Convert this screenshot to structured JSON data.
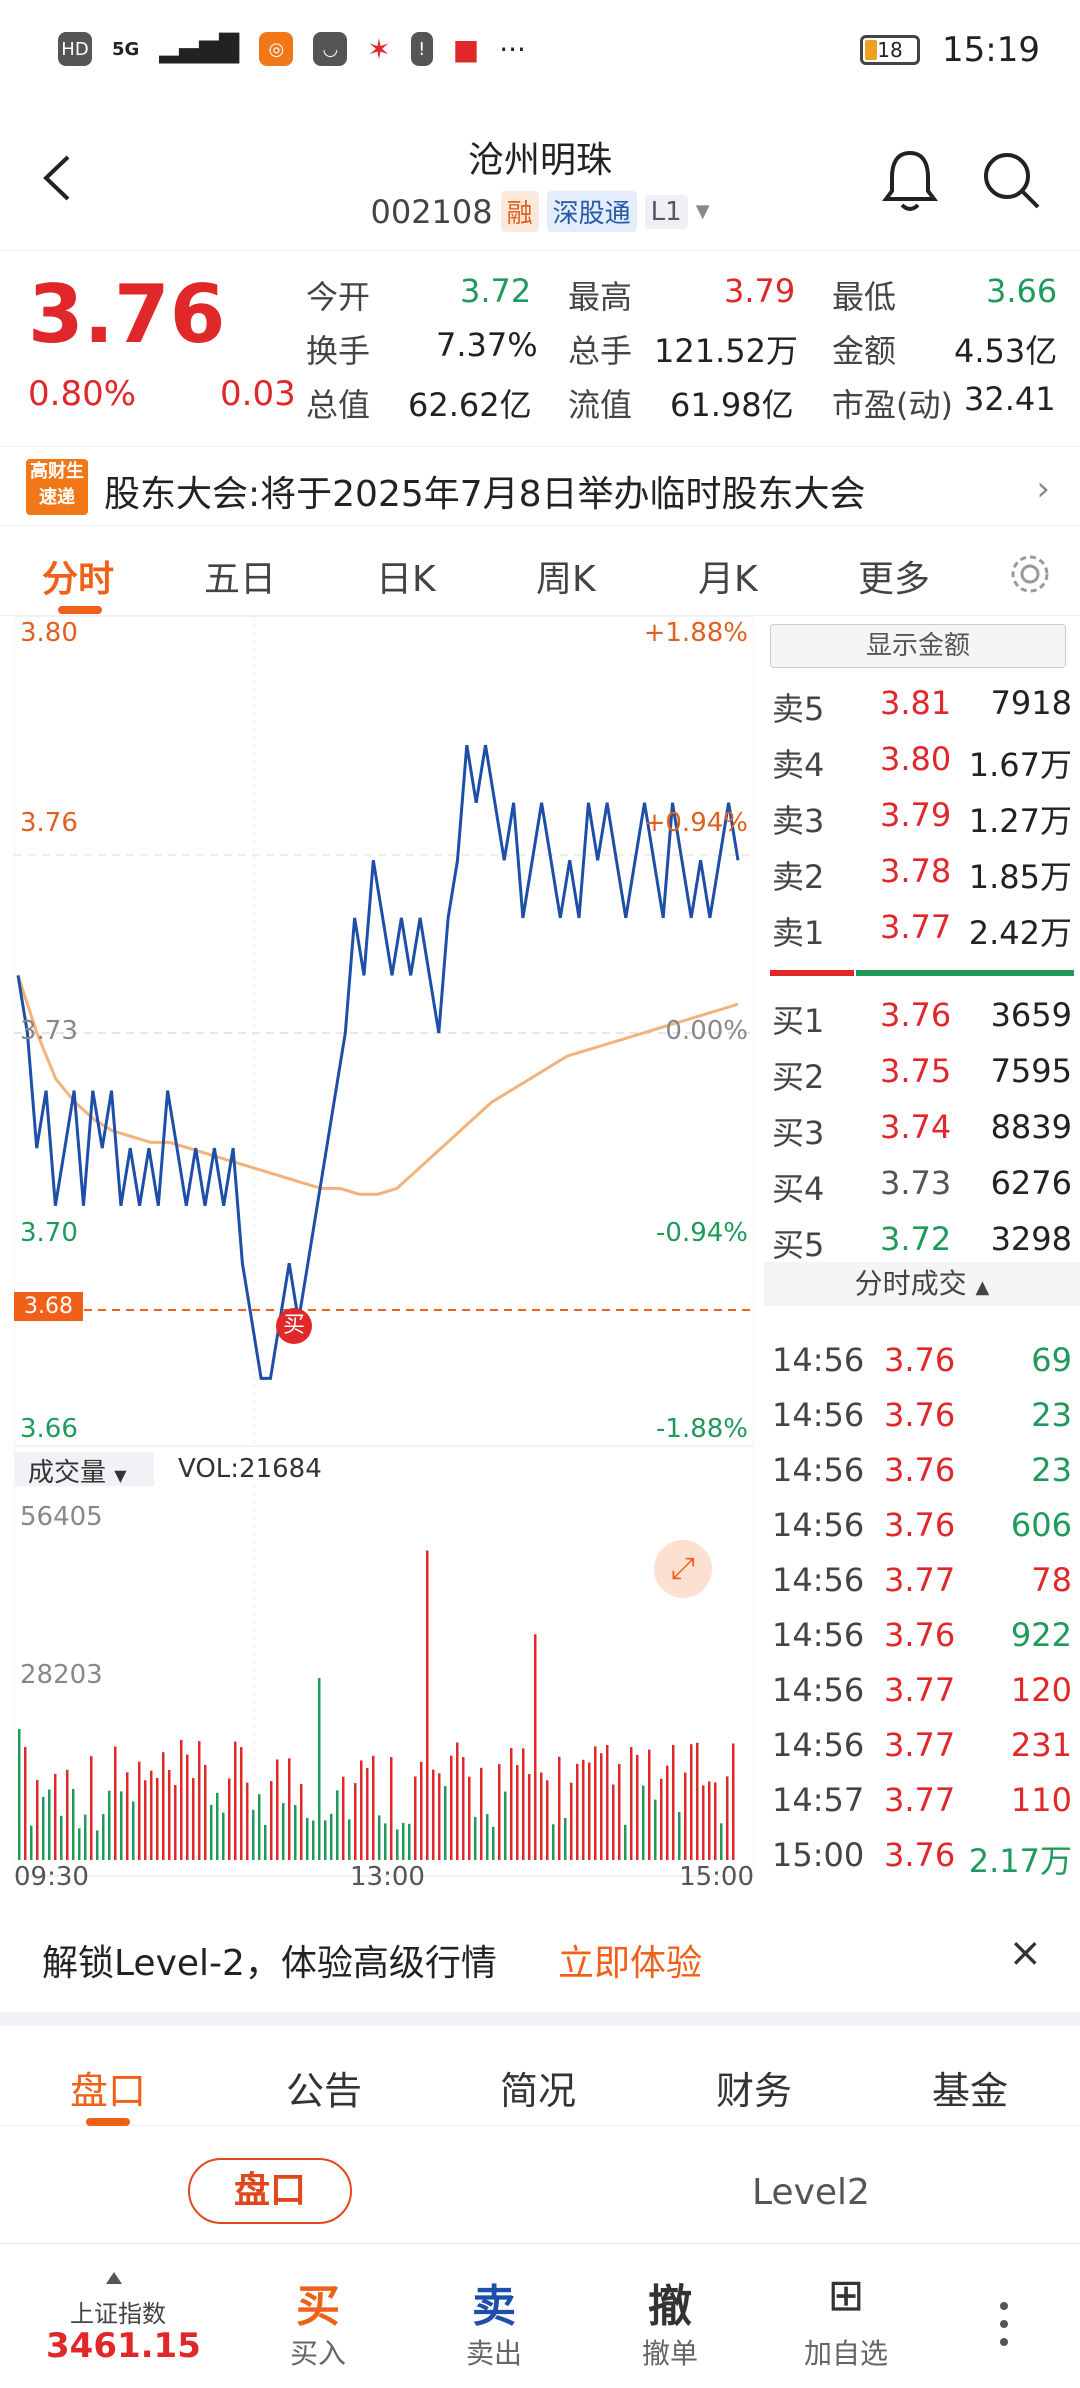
{
  "status_bar": {
    "network_labels": [
      "HD",
      "5G"
    ],
    "time": "15:19",
    "battery": "18"
  },
  "header": {
    "name": "沧州明珠",
    "code": "002108",
    "tags": [
      "融",
      "深股通",
      "L1"
    ]
  },
  "quote": {
    "price": "3.76",
    "pct_change": "0.80%",
    "change": "0.03",
    "fields": [
      {
        "label": "今开",
        "value": "3.72",
        "color": "green"
      },
      {
        "label": "最高",
        "value": "3.79",
        "color": "red"
      },
      {
        "label": "最低",
        "value": "3.66",
        "color": "green"
      },
      {
        "label": "换手",
        "value": "7.37%",
        "color": "plain"
      },
      {
        "label": "总手",
        "value": "121.52万",
        "color": "plain"
      },
      {
        "label": "金额",
        "value": "4.53亿",
        "color": "plain"
      },
      {
        "label": "总值",
        "value": "62.62亿",
        "color": "plain"
      },
      {
        "label": "流值",
        "value": "61.98亿",
        "color": "plain"
      },
      {
        "label": "市盈(动)",
        "value": "32.41",
        "color": "plain"
      }
    ]
  },
  "news": {
    "logo_text": "高财生 速递",
    "text": "股东大会:将于2025年7月8日举办临时股东大会"
  },
  "period_tabs": [
    "分时",
    "五日",
    "日K",
    "周K",
    "月K",
    "更多"
  ],
  "chart_data": {
    "type": "line",
    "price_axis": {
      "ticks": [
        "3.80",
        "3.76",
        "3.73",
        "3.70",
        "3.66"
      ],
      "min": 3.66,
      "max": 3.8
    },
    "pct_axis": [
      "+1.88%",
      "+0.94%",
      "0.00%",
      "-0.94%",
      "-1.88%"
    ],
    "prev_close": 3.73,
    "marker_price": "3.68",
    "buy_marker": "买",
    "price_series": [
      3.74,
      3.73,
      3.71,
      3.72,
      3.7,
      3.71,
      3.72,
      3.7,
      3.72,
      3.71,
      3.72,
      3.7,
      3.71,
      3.7,
      3.71,
      3.7,
      3.72,
      3.71,
      3.7,
      3.71,
      3.7,
      3.71,
      3.7,
      3.71,
      3.69,
      3.68,
      3.67,
      3.67,
      3.68,
      3.69,
      3.68,
      3.69,
      3.7,
      3.71,
      3.72,
      3.73,
      3.75,
      3.74,
      3.76,
      3.75,
      3.74,
      3.75,
      3.74,
      3.75,
      3.74,
      3.73,
      3.75,
      3.76,
      3.78,
      3.77,
      3.78,
      3.77,
      3.76,
      3.77,
      3.75,
      3.76,
      3.77,
      3.76,
      3.75,
      3.76,
      3.75,
      3.77,
      3.76,
      3.77,
      3.76,
      3.75,
      3.76,
      3.77,
      3.76,
      3.75,
      3.77,
      3.76,
      3.75,
      3.76,
      3.75,
      3.76,
      3.77,
      3.76
    ],
    "avg_series": [
      3.74,
      3.73,
      3.722,
      3.718,
      3.715,
      3.713,
      3.712,
      3.711,
      3.711,
      3.71,
      3.709,
      3.708,
      3.707,
      3.706,
      3.705,
      3.704,
      3.703,
      3.703,
      3.702,
      3.702,
      3.703,
      3.706,
      3.709,
      3.712,
      3.715,
      3.718,
      3.72,
      3.722,
      3.724,
      3.726,
      3.727,
      3.728,
      3.729,
      3.73,
      3.731,
      3.732,
      3.733,
      3.734,
      3.735
    ],
    "volume": {
      "label": "成交量",
      "vol_text": "VOL:21684",
      "ticks": [
        "56405",
        "28203"
      ],
      "max": 56405
    },
    "time_labels": [
      "09:30",
      "13:00",
      "15:00"
    ]
  },
  "order_book": {
    "toggle_label": "显示金额",
    "asks": [
      {
        "label": "卖5",
        "price": "3.81",
        "vol": "7918",
        "color": "red"
      },
      {
        "label": "卖4",
        "price": "3.80",
        "vol": "1.67万",
        "color": "red"
      },
      {
        "label": "卖3",
        "price": "3.79",
        "vol": "1.27万",
        "color": "red"
      },
      {
        "label": "卖2",
        "price": "3.78",
        "vol": "1.85万",
        "color": "red"
      },
      {
        "label": "卖1",
        "price": "3.77",
        "vol": "2.42万",
        "color": "red"
      }
    ],
    "bids": [
      {
        "label": "买1",
        "price": "3.76",
        "vol": "3659",
        "color": "red"
      },
      {
        "label": "买2",
        "price": "3.75",
        "vol": "7595",
        "color": "red"
      },
      {
        "label": "买3",
        "price": "3.74",
        "vol": "8839",
        "color": "red"
      },
      {
        "label": "买4",
        "price": "3.73",
        "vol": "6276",
        "color": "gray"
      },
      {
        "label": "买5",
        "price": "3.72",
        "vol": "3298",
        "color": "green"
      }
    ]
  },
  "ticks": {
    "header": "分时成交",
    "rows": [
      {
        "time": "14:56",
        "price": "3.76",
        "vol": "69",
        "vc": "green"
      },
      {
        "time": "14:56",
        "price": "3.76",
        "vol": "23",
        "vc": "green"
      },
      {
        "time": "14:56",
        "price": "3.76",
        "vol": "23",
        "vc": "green"
      },
      {
        "time": "14:56",
        "price": "3.76",
        "vol": "606",
        "vc": "green"
      },
      {
        "time": "14:56",
        "price": "3.77",
        "vol": "78",
        "vc": "red"
      },
      {
        "time": "14:56",
        "price": "3.76",
        "vol": "922",
        "vc": "green"
      },
      {
        "time": "14:56",
        "price": "3.77",
        "vol": "120",
        "vc": "red"
      },
      {
        "time": "14:56",
        "price": "3.77",
        "vol": "231",
        "vc": "red"
      },
      {
        "time": "14:57",
        "price": "3.77",
        "vol": "110",
        "vc": "red"
      },
      {
        "time": "15:00",
        "price": "3.76",
        "vol": "2.17万",
        "vc": "green"
      }
    ]
  },
  "level2_banner": {
    "text": "解锁Level-2，体验高级行情",
    "link": "立即体验",
    "close": "×"
  },
  "bottom_tabs": [
    "盘口",
    "公告",
    "简况",
    "财务",
    "基金"
  ],
  "sub_tabs": [
    "盘口",
    "Level2"
  ],
  "bottom_bar": {
    "index_name": "上证指数",
    "index_value": "3461.15",
    "actions": [
      {
        "icon": "买",
        "label": "买入",
        "color": "#f06018"
      },
      {
        "icon": "卖",
        "label": "卖出",
        "color": "#1d4fa8"
      },
      {
        "icon": "撤",
        "label": "撤单",
        "color": "#333333"
      },
      {
        "icon": "⊞",
        "label": "加自选",
        "color": "#333333"
      }
    ]
  },
  "colors": {
    "up": "#e0282a",
    "down": "#1f9a5b",
    "accent": "#f06018",
    "line": "#1d4fa8",
    "avg": "#f3b27a"
  }
}
